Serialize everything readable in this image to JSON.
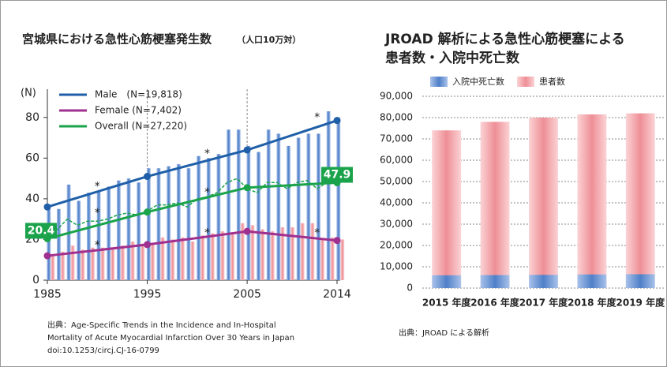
{
  "chart_data": [
    {
      "type": "line",
      "title": "宮城県における急性心筋梗塞発生数",
      "title_suffix": "（人口10万対）",
      "ylabel": "(N)",
      "xlim": [
        1985,
        2014
      ],
      "xticks": [
        1985,
        1995,
        2005,
        2014
      ],
      "ylim": [
        0,
        90
      ],
      "yticks": [
        0,
        20,
        40,
        60,
        80
      ],
      "x_grid_dashed": true,
      "x": [
        1985,
        1995,
        2005,
        2014
      ],
      "series": [
        {
          "name": "Male　(N=19,818)",
          "color": "#1f5fa8",
          "values": [
            36,
            51,
            64,
            78.5
          ]
        },
        {
          "name": "Female (N=7,402)",
          "color": "#a0308f",
          "values": [
            12,
            17.5,
            24,
            19.5
          ]
        },
        {
          "name": "Overall (N=27,220)",
          "color": "#1aa34a",
          "values": [
            20.4,
            33.5,
            45.5,
            47.9
          ],
          "value_labels": [
            "20.4",
            null,
            null,
            "47.9"
          ]
        }
      ],
      "annual_x": [
        1985,
        1986,
        1987,
        1988,
        1989,
        1990,
        1991,
        1992,
        1993,
        1994,
        1995,
        1996,
        1997,
        1998,
        1999,
        2000,
        2001,
        2002,
        2003,
        2004,
        2005,
        2006,
        2007,
        2008,
        2009,
        2010,
        2011,
        2012,
        2013,
        2014
      ],
      "annual_bars": [
        {
          "color": "#6f97d4",
          "values": [
            35,
            35,
            47,
            39,
            43,
            44,
            46,
            49,
            50,
            48,
            55,
            55,
            56,
            57,
            55,
            61,
            60,
            62,
            74,
            74,
            66,
            63,
            74,
            72,
            66,
            70,
            72,
            72,
            83,
            80
          ]
        },
        {
          "color": "#f2a5aa",
          "values": [
            12,
            14,
            17,
            15,
            16,
            16,
            16,
            17,
            19,
            18,
            18,
            21,
            20,
            21,
            19,
            22,
            23,
            24,
            23,
            28,
            27,
            25,
            24,
            26,
            26,
            28,
            28,
            20,
            21,
            20
          ]
        }
      ],
      "annual_line": {
        "color": "#1aa34a",
        "values": [
          22,
          25,
          30,
          27,
          29,
          29,
          30,
          32,
          33,
          32,
          34,
          37,
          37,
          38,
          36,
          40,
          41,
          43,
          48,
          50,
          45,
          43,
          48,
          48,
          45,
          48,
          49,
          45,
          48,
          48
        ]
      },
      "annotations": [
        {
          "text": "*",
          "x": 1990,
          "y": 46
        },
        {
          "text": "*",
          "x": 1990,
          "y": 33
        },
        {
          "text": "*",
          "x": 1990,
          "y": 17
        },
        {
          "text": "*",
          "x": 2001,
          "y": 62
        },
        {
          "text": "*",
          "x": 2001,
          "y": 43
        },
        {
          "text": "*",
          "x": 2001,
          "y": 23
        },
        {
          "text": "*",
          "x": 2012,
          "y": 80
        },
        {
          "text": "*",
          "x": 2012,
          "y": 23
        }
      ],
      "source": [
        "出典：Age-Specific Trends in the Incidence and In-Hospital",
        "Mortality of Acute Myocardial Infarction Over 30 Years in Japan",
        "doi:10.1253/circj.CJ-16-0799"
      ]
    },
    {
      "type": "bar",
      "title": [
        "JROAD 解析による急性心筋梗塞による",
        "患者数・入院中死亡数"
      ],
      "categories": [
        "2015 年度",
        "2016 年度",
        "2017 年度",
        "2018 年度",
        "2019 年度"
      ],
      "ylim": [
        0,
        90000
      ],
      "yticks": [
        0,
        {
          "value": 10000,
          "label": "10,000"
        },
        {
          "value": 20000,
          "label": "20,000"
        },
        {
          "value": 30000,
          "label": "30,000"
        },
        {
          "value": 40000,
          "label": "40,000"
        },
        {
          "value": 50000,
          "label": "50,000"
        },
        {
          "value": 60000,
          "label": "60,000"
        },
        {
          "value": 70000,
          "label": "70,000"
        },
        {
          "value": 80000,
          "label": "80,000"
        },
        {
          "value": 90000,
          "label": "90,000"
        }
      ],
      "grid": true,
      "series": [
        {
          "name": "患者数",
          "color": "#f4a3a8",
          "values": [
            74000,
            78000,
            80000,
            81500,
            82000
          ]
        },
        {
          "name": "入院中死亡数",
          "color": "#6f97d4",
          "values": [
            6000,
            6100,
            6200,
            6400,
            6500
          ]
        }
      ],
      "legend_order": [
        1,
        0
      ],
      "source": "出典：JROAD による解析"
    }
  ]
}
